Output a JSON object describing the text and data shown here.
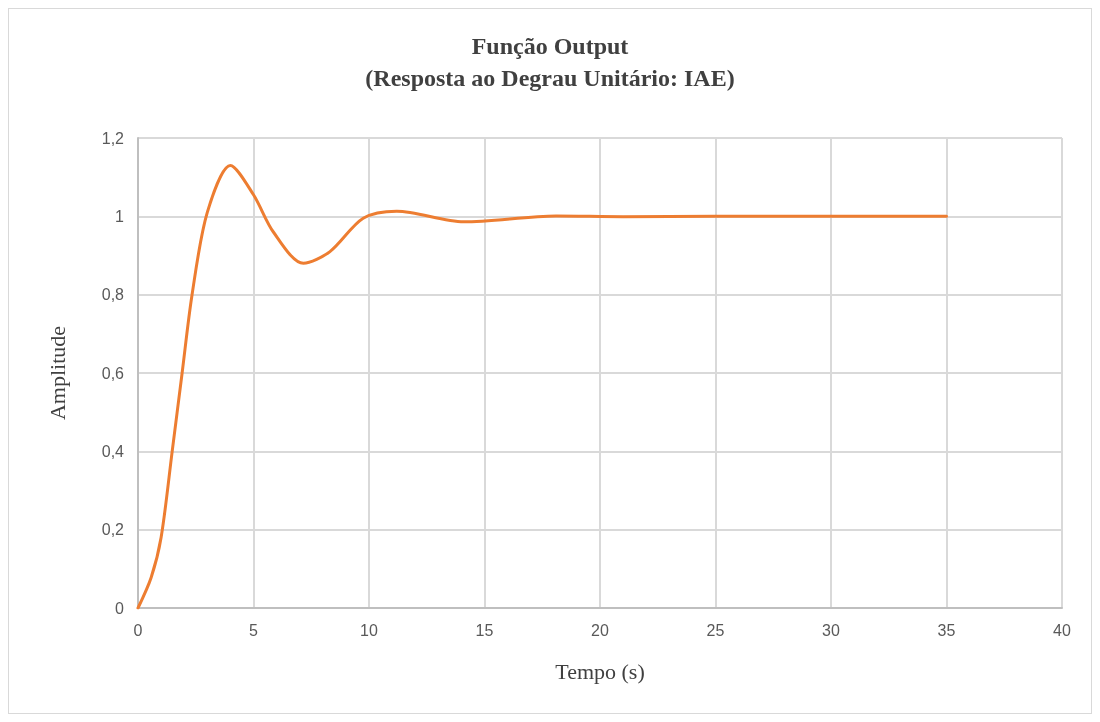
{
  "chart_data": {
    "type": "line",
    "title": "Função Output\n(Resposta ao Degrau Unitário: IAE)",
    "xlabel": "Tempo (s)",
    "ylabel": "Amplitude",
    "x": [
      0,
      0.57,
      1.0,
      1.48,
      1.91,
      2.34,
      3.0,
      4.0,
      5.0,
      5.86,
      7.16,
      8.31,
      9.75,
      11.2,
      14.1,
      18.1,
      21,
      25,
      30,
      35
    ],
    "series": [
      {
        "color": "#ed7d31",
        "values": [
          0,
          0.078,
          0.18,
          0.4,
          0.6,
          0.8,
          1.01,
          1.13,
          1.055,
          0.96,
          0.88,
          0.91,
          0.995,
          1.013,
          0.986,
          1.001,
          0.999,
          1.0,
          1.0,
          1.0
        ]
      }
    ],
    "xlim": [
      0,
      40
    ],
    "xticks": [
      0,
      5,
      10,
      15,
      20,
      25,
      30,
      35,
      40
    ],
    "ylim": [
      0,
      1.2
    ],
    "yticks": [
      0,
      {
        "value": 0.2,
        "label": "0,2"
      },
      {
        "value": 0.4,
        "label": "0,4"
      },
      {
        "value": 0.6,
        "label": "0,6"
      },
      {
        "value": 0.8,
        "label": "0,8"
      },
      1,
      {
        "value": 1.2,
        "label": "1,2"
      }
    ],
    "grid": true,
    "marker": "none",
    "line_style": "solid"
  }
}
